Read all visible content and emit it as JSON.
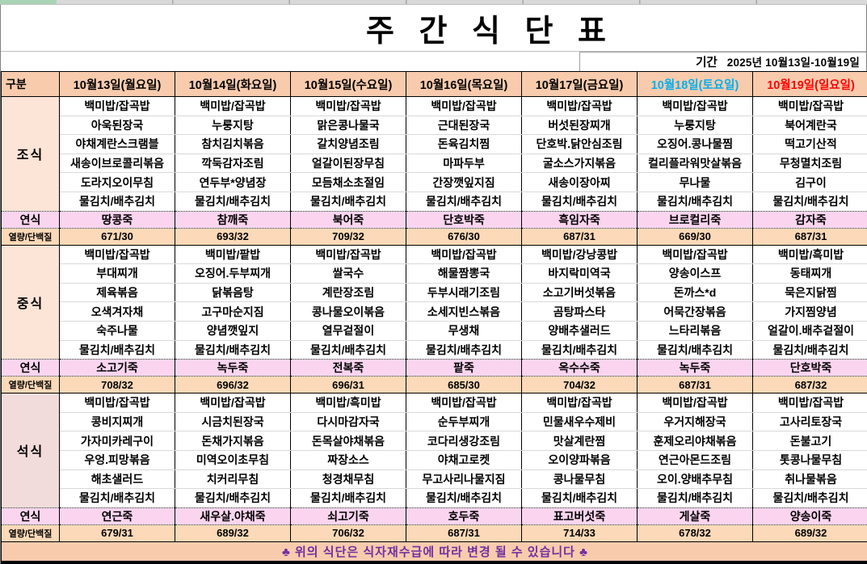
{
  "title": "주 간 식 단 표",
  "period": {
    "label": "기간",
    "value": "2025년 10월13일-10월19일"
  },
  "colors": {
    "header_bg": "#f8cbad",
    "breakfast_label_bg": "#fce4d6",
    "lunch_label_bg": "#fce4d6",
    "dinner_label_bg": "#f2dcdb",
    "soft_row_bg": "#fbd5f0",
    "calorie_row_bg": "#fcd9b8",
    "footer_bg": "#f8cbad",
    "footer_text": "#7030a0",
    "saturday_text": "#00b0f0",
    "sunday_text": "#ff0000",
    "top_strip_green": "#a9d5b5"
  },
  "header": {
    "category": "구분",
    "days": [
      {
        "label": "10월13일(월요일)",
        "color": "#000000"
      },
      {
        "label": "10월14일(화요일)",
        "color": "#000000"
      },
      {
        "label": "10월15일(수요일)",
        "color": "#000000"
      },
      {
        "label": "10월16일(목요일)",
        "color": "#000000"
      },
      {
        "label": "10월17일(금요일)",
        "color": "#000000"
      },
      {
        "label": "10월18일(토요일)",
        "color": "#00b0f0"
      },
      {
        "label": "10월19일(일요일)",
        "color": "#ff0000"
      }
    ]
  },
  "row_labels": {
    "soft": "연식",
    "calorie": "열량/단백질"
  },
  "meals": [
    {
      "name": "조식",
      "label_bg": "#fce4d6",
      "days": [
        {
          "items": [
            "백미밥/잡곡밥",
            "아욱된장국",
            "야채계란스크램블",
            "새송이브로콜리볶음",
            "도라지오이무침",
            "물김치/배추김치"
          ],
          "soft": "땅콩죽",
          "calorie": "671/30"
        },
        {
          "items": [
            "백미밥/잡곡밥",
            "누룽지탕",
            "참치김치볶음",
            "깍둑감자조림",
            "연두부*양념장",
            "물김치/배추김치"
          ],
          "soft": "참깨죽",
          "calorie": "693/32"
        },
        {
          "items": [
            "백미밥/잡곡밥",
            "맑은콩나물국",
            "갈치양념조림",
            "얼갈이된장무침",
            "모듬채소초절임",
            "물김치/배추김치"
          ],
          "soft": "북어죽",
          "calorie": "709/32"
        },
        {
          "items": [
            "백미밥/잡곡밥",
            "근대된장국",
            "돈육김치찜",
            "마파두부",
            "간장깻잎지짐",
            "물김치/배추김치"
          ],
          "soft": "단호박죽",
          "calorie": "676/30"
        },
        {
          "items": [
            "백미밥/잡곡밥",
            "버섯된장찌개",
            "단호박.닭안심조림",
            "굴소스가지볶음",
            "새송이장아찌",
            "물김치/배추김치"
          ],
          "soft": "흑임자죽",
          "calorie": "687/31"
        },
        {
          "items": [
            "백미밥/잡곡밥",
            "누룽지탕",
            "오징어.콩나물찜",
            "컬리플라워맛살볶음",
            "무나물",
            "물김치/배추김치"
          ],
          "soft": "브로컬리죽",
          "calorie": "669/30"
        },
        {
          "items": [
            "백미밥/잡곡밥",
            "북어계란국",
            "떡고기산적",
            "무청멸치조림",
            "김구이",
            "물김치/배추김치"
          ],
          "soft": "감자죽",
          "calorie": "687/31"
        }
      ]
    },
    {
      "name": "중식",
      "label_bg": "#fce4d6",
      "days": [
        {
          "items": [
            "백미밥/잡곡밥",
            "부대찌개",
            "제육볶음",
            "오색겨자채",
            "숙주나물",
            "물김치/배추김치"
          ],
          "soft": "소고기죽",
          "calorie": "708/32"
        },
        {
          "items": [
            "백미밥/팥밥",
            "오징어.두부찌개",
            "닭볶음탕",
            "고구마순지짐",
            "양념깻잎지",
            "물김치/배추김치"
          ],
          "soft": "녹두죽",
          "calorie": "696/32"
        },
        {
          "items": [
            "백미밥/잡곡밥",
            "쌀국수",
            "계란장조림",
            "콩나물오이볶음",
            "열무겉절이",
            "물김치/배추김치"
          ],
          "soft": "전복죽",
          "calorie": "696/31"
        },
        {
          "items": [
            "백미밥/잡곡밥",
            "해물짬뽕국",
            "두부시래기조림",
            "소세지빈스볶음",
            "무생채",
            "물김치/배추김치"
          ],
          "soft": "팥죽",
          "calorie": "685/30"
        },
        {
          "items": [
            "백미밥/강낭콩밥",
            "바지락미역국",
            "소고기버섯볶음",
            "곰탕파스타",
            "양배추샐러드",
            "물김치/배추김치"
          ],
          "soft": "옥수수죽",
          "calorie": "704/32"
        },
        {
          "items": [
            "백미밥/잡곡밥",
            "양송이스프",
            "돈까스*d",
            "어묵간장볶음",
            "느타리볶음",
            "물김치/배추김치"
          ],
          "soft": "녹두죽",
          "calorie": "687/31"
        },
        {
          "items": [
            "백미밥/흑미밥",
            "동태찌개",
            "묵은지닭찜",
            "가지찜양념",
            "얼갈이.배추겉절이",
            "물김치/배추김치"
          ],
          "soft": "단호박죽",
          "calorie": "687/32"
        }
      ]
    },
    {
      "name": "석식",
      "label_bg": "#f2dcdb",
      "days": [
        {
          "items": [
            "백미밥/잡곡밥",
            "콩비지찌개",
            "가자미카레구이",
            "우엉.피망볶음",
            "해초샐러드",
            "물김치/배추김치"
          ],
          "soft": "연근죽",
          "calorie": "679/31"
        },
        {
          "items": [
            "백미밥/잡곡밥",
            "시금치된장국",
            "돈채가지볶음",
            "미역오이초무침",
            "치커리무침",
            "물김치/배추김치"
          ],
          "soft": "새우살.야채죽",
          "calorie": "689/32"
        },
        {
          "items": [
            "백미밥/흑미밥",
            "다시마감자국",
            "돈목살야채볶음",
            "짜장소스",
            "청경채무침",
            "물김치/배추김치"
          ],
          "soft": "쇠고기죽",
          "calorie": "706/32"
        },
        {
          "items": [
            "백미밥/잡곡밥",
            "순두부찌개",
            "코다리생강조림",
            "야채고로켓",
            "무고사리나물지짐",
            "물김치/배추김치"
          ],
          "soft": "호두죽",
          "calorie": "687/31"
        },
        {
          "items": [
            "백미밥/잡곡밥",
            "민물새우수제비",
            "맛살계란찜",
            "오이양파볶음",
            "콩나물무침",
            "물김치/배추김치"
          ],
          "soft": "표고버섯죽",
          "calorie": "714/33"
        },
        {
          "items": [
            "백미밥/잡곡밥",
            "우거지해장국",
            "훈제오리야채볶음",
            "연근아몬드조림",
            "오이.양배추무침",
            "물김치/배추김치"
          ],
          "soft": "게살죽",
          "calorie": "678/32"
        },
        {
          "items": [
            "백미밥/잡곡밥",
            "고사리토장국",
            "돈불고기",
            "톳콩나물무침",
            "취나물볶음",
            "물김치/배추김치"
          ],
          "soft": "양송이죽",
          "calorie": "689/32"
        }
      ]
    }
  ],
  "footer": "♣ 위의 식단은 식자재수급에 따라 변경 될 수 있습니다 ♣"
}
